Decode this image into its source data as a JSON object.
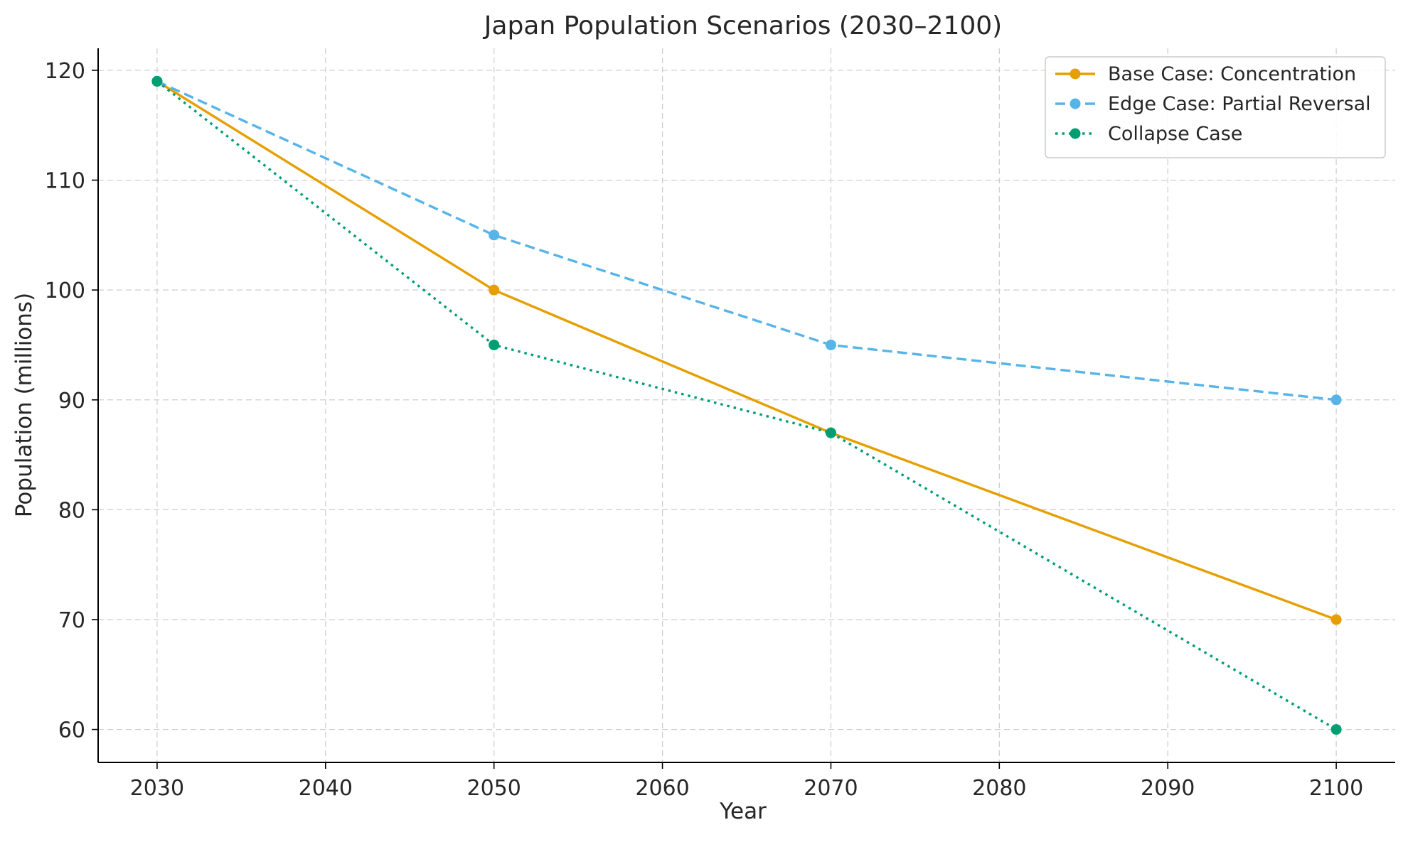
{
  "chart_data": {
    "type": "line",
    "title": "Japan Population Scenarios (2030–2100)",
    "xlabel": "Year",
    "ylabel": "Population (millions)",
    "x": [
      2030,
      2050,
      2070,
      2100
    ],
    "xlim": [
      2026.5,
      2103.5
    ],
    "ylim": [
      57,
      122
    ],
    "xticks": [
      2030,
      2040,
      2050,
      2060,
      2070,
      2080,
      2090,
      2100
    ],
    "yticks": [
      60,
      70,
      80,
      90,
      100,
      110,
      120
    ],
    "grid": true,
    "legend_position": "top-right",
    "series": [
      {
        "name": "Base Case: Concentration",
        "values": [
          119,
          100,
          87,
          70
        ],
        "color": "#E69F00",
        "linestyle": "solid"
      },
      {
        "name": "Edge Case: Partial Reversal",
        "values": [
          119,
          105,
          95,
          90
        ],
        "color": "#56B4E9",
        "linestyle": "dashed"
      },
      {
        "name": "Collapse Case",
        "values": [
          119,
          95,
          87,
          60
        ],
        "color": "#009E73",
        "linestyle": "dotted"
      }
    ]
  }
}
